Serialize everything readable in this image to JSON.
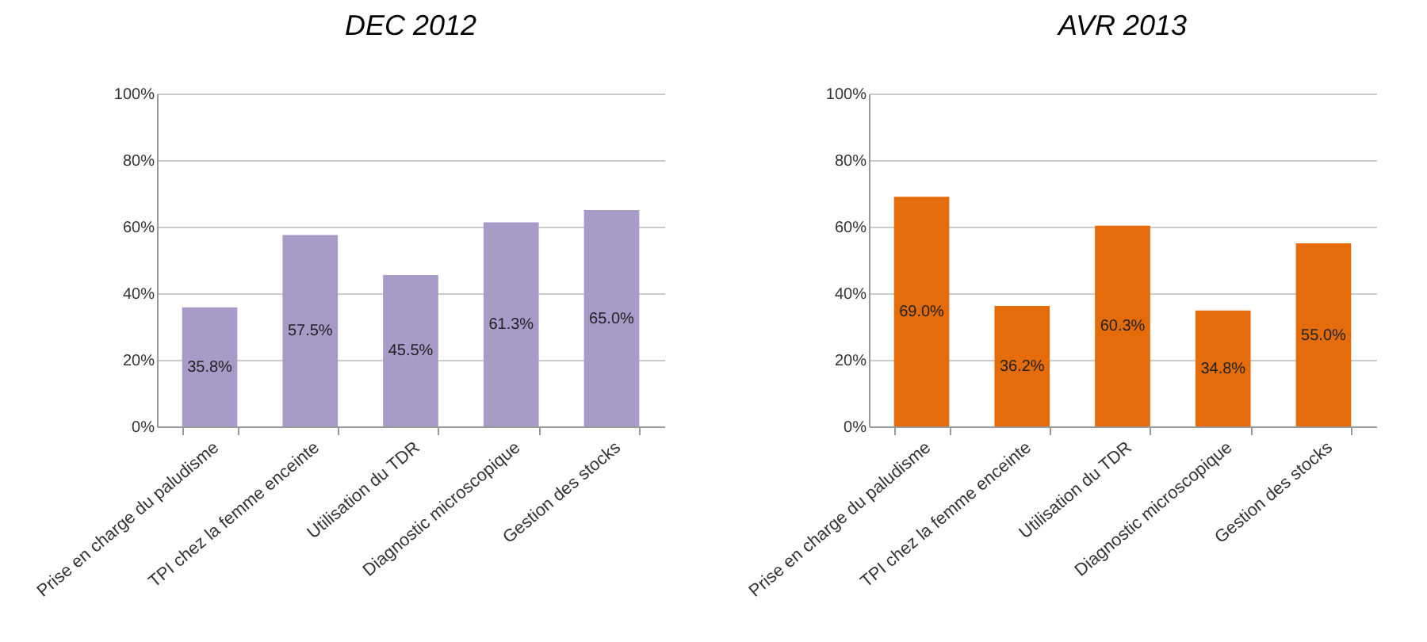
{
  "chart_data": [
    {
      "type": "bar",
      "title": "DEC 2012",
      "categories": [
        "Prise en charge du paludisme",
        "TPI chez la femme enceinte",
        "Utilisation du TDR",
        "Diagnostic microscopique",
        "Gestion des stocks"
      ],
      "values": [
        35.8,
        57.5,
        45.5,
        61.3,
        65.0
      ],
      "color": "#a99bc8",
      "value_labels": [
        "35.8%",
        "57.5%",
        "45.5%",
        "61.3%",
        "65.0%"
      ],
      "ylim": [
        0,
        100
      ],
      "yticks": [
        {
          "value": 0,
          "label": "0%"
        },
        {
          "value": 20,
          "label": "20%"
        },
        {
          "value": 40,
          "label": "40%"
        },
        {
          "value": 60,
          "label": "60%"
        },
        {
          "value": 80,
          "label": "80%"
        },
        {
          "value": 100,
          "label": "100%"
        }
      ],
      "grid": "y"
    },
    {
      "type": "bar",
      "title": "AVR 2013",
      "categories": [
        "Prise en charge du paludisme",
        "TPI chez la femme enceinte",
        "Utilisation du TDR",
        "Diagnostic microscopique",
        "Gestion des stocks"
      ],
      "values": [
        69.0,
        36.2,
        60.3,
        34.8,
        55.0
      ],
      "color": "#e46c0a",
      "value_labels": [
        "69.0%",
        "36.2%",
        "60.3%",
        "34.8%",
        "55.0%"
      ],
      "ylim": [
        0,
        100
      ],
      "yticks": [
        {
          "value": 0,
          "label": "0%"
        },
        {
          "value": 20,
          "label": "20%"
        },
        {
          "value": 40,
          "label": "40%"
        },
        {
          "value": 60,
          "label": "60%"
        },
        {
          "value": 80,
          "label": "80%"
        },
        {
          "value": 100,
          "label": "100%"
        }
      ],
      "grid": "y"
    }
  ]
}
